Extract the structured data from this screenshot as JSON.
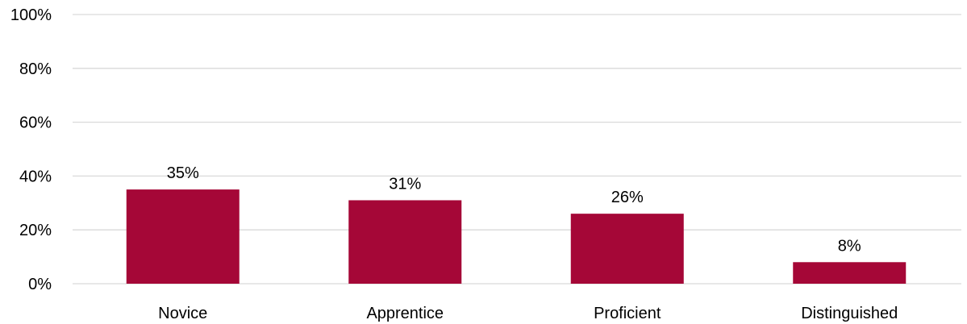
{
  "chart_data": {
    "type": "bar",
    "title": "",
    "xlabel": "",
    "ylabel": "",
    "categories": [
      "Novice",
      "Apprentice",
      "Proficient",
      "Distinguished"
    ],
    "values": [
      35,
      31,
      26,
      8
    ],
    "data_labels": [
      "35%",
      "31%",
      "26%",
      "8%"
    ],
    "ylim": [
      0,
      100
    ],
    "y_ticks": [
      0,
      20,
      40,
      60,
      80,
      100
    ],
    "y_tick_labels": [
      "0%",
      "20%",
      "40%",
      "60%",
      "80%",
      "100%"
    ],
    "grid": true,
    "legend": "none",
    "colors": {
      "bar": "#a50737",
      "grid": "#d9d9d9",
      "text": "#000000"
    }
  }
}
